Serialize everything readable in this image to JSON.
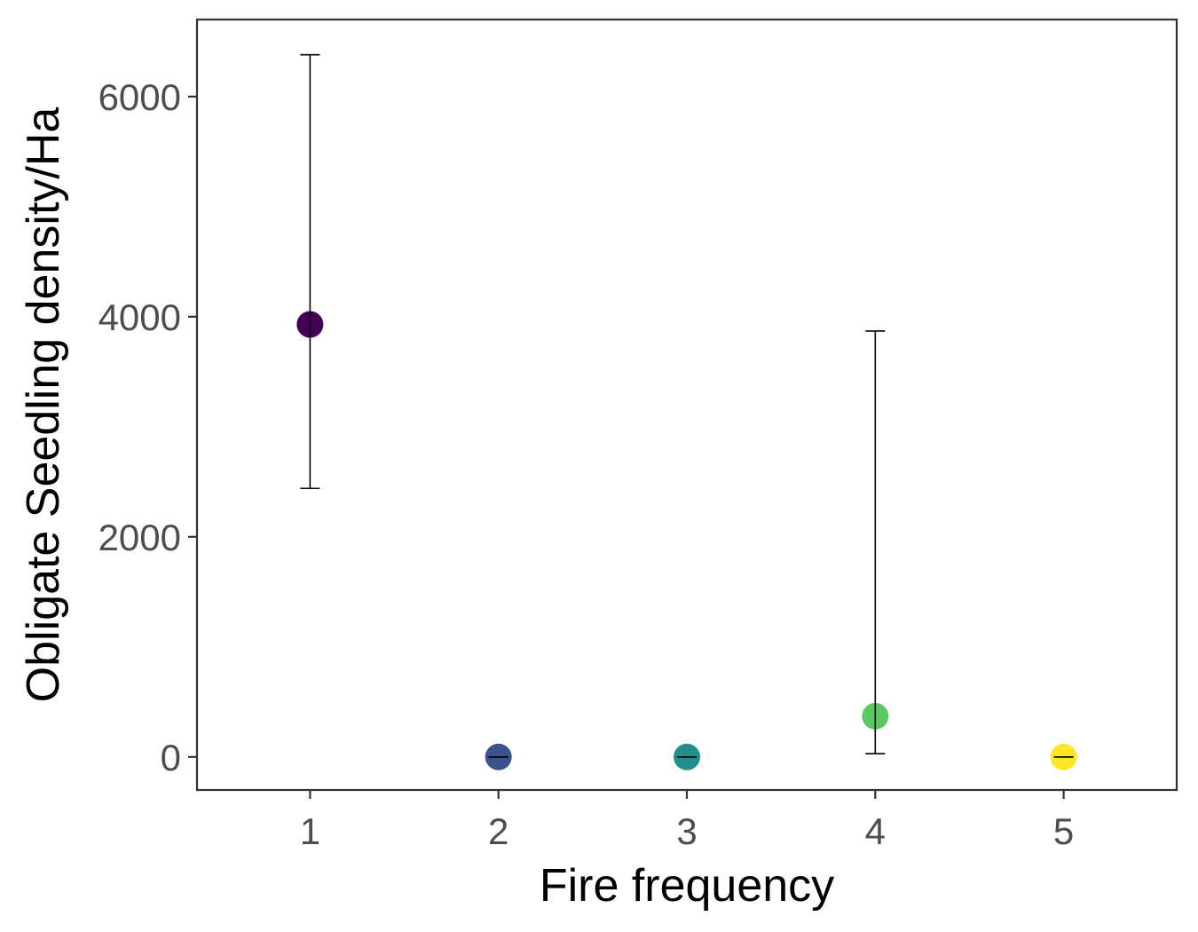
{
  "chart_data": {
    "type": "scatter",
    "xlabel": "Fire frequency",
    "ylabel": "Obligate Seedling density/Ha",
    "xlim": [
      0.4,
      5.6
    ],
    "ylim": [
      -300,
      6700
    ],
    "x_ticks": [
      1,
      2,
      3,
      4,
      5
    ],
    "y_ticks": [
      0,
      2000,
      4000,
      6000
    ],
    "grid": false,
    "legend": "none",
    "points": [
      {
        "x": 1,
        "y": 3930,
        "ymin": 2440,
        "ymax": 6380,
        "color": "#440154"
      },
      {
        "x": 2,
        "y": 0,
        "ymin": 0,
        "ymax": 0,
        "color": "#3B528B"
      },
      {
        "x": 3,
        "y": 0,
        "ymin": 0,
        "ymax": 0,
        "color": "#21908C"
      },
      {
        "x": 4,
        "y": 370,
        "ymin": 30,
        "ymax": 3870,
        "color": "#5DC863"
      },
      {
        "x": 5,
        "y": 0,
        "ymin": 0,
        "ymax": 0,
        "color": "#FDE725"
      }
    ]
  }
}
